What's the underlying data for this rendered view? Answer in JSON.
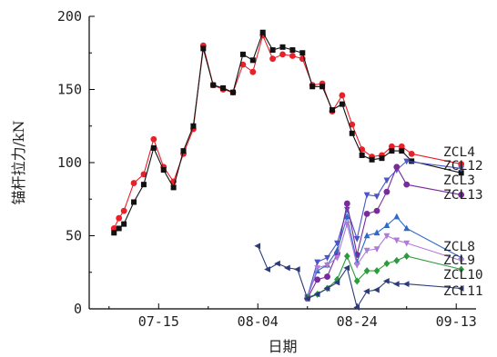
{
  "chart_data": {
    "type": "line",
    "xlabel": "日期",
    "ylabel": "锚杆拉力/kN",
    "x_unit": "days since 07-01",
    "x_ticks": [
      {
        "x": 14,
        "label": "07-15"
      },
      {
        "x": 34,
        "label": "08-04"
      },
      {
        "x": 54,
        "label": "08-24"
      },
      {
        "x": 74,
        "label": "09-13"
      }
    ],
    "xlim": [
      0,
      78
    ],
    "ylim": [
      0,
      200
    ],
    "y_ticks": [
      0,
      50,
      100,
      150,
      200
    ],
    "grid": false,
    "legend": "series labels at right end of lines",
    "series": [
      {
        "name": "ZCL4",
        "color": "#e8202a",
        "marker": "circle",
        "points": [
          [
            5,
            55
          ],
          [
            6,
            62
          ],
          [
            7,
            67
          ],
          [
            9,
            86
          ],
          [
            11,
            92
          ],
          [
            13,
            116
          ],
          [
            15,
            97
          ],
          [
            17,
            87
          ],
          [
            19,
            106
          ],
          [
            21,
            123
          ],
          [
            23,
            180
          ],
          [
            25,
            153
          ],
          [
            27,
            150
          ],
          [
            29,
            148
          ],
          [
            31,
            167
          ],
          [
            33,
            162
          ],
          [
            35,
            187
          ],
          [
            37,
            171
          ],
          [
            39,
            174
          ],
          [
            41,
            173
          ],
          [
            43,
            171
          ],
          [
            45,
            153
          ],
          [
            47,
            154
          ],
          [
            49,
            135
          ],
          [
            51,
            146
          ],
          [
            53,
            126
          ],
          [
            55,
            109
          ],
          [
            57,
            104
          ],
          [
            59,
            105
          ],
          [
            61,
            111
          ],
          [
            63,
            111
          ],
          [
            65,
            106
          ],
          [
            75,
            99
          ]
        ]
      },
      {
        "name": "ZCL12",
        "color": "#111111",
        "marker": "square",
        "points": [
          [
            5,
            52
          ],
          [
            6,
            55
          ],
          [
            7,
            58
          ],
          [
            9,
            73
          ],
          [
            11,
            85
          ],
          [
            13,
            110
          ],
          [
            15,
            95
          ],
          [
            17,
            83
          ],
          [
            19,
            108
          ],
          [
            21,
            125
          ],
          [
            23,
            178
          ],
          [
            25,
            153
          ],
          [
            27,
            151
          ],
          [
            29,
            148
          ],
          [
            31,
            174
          ],
          [
            33,
            170
          ],
          [
            35,
            189
          ],
          [
            37,
            177
          ],
          [
            39,
            179
          ],
          [
            41,
            177
          ],
          [
            43,
            175
          ],
          [
            45,
            152
          ],
          [
            47,
            152
          ],
          [
            49,
            136
          ],
          [
            51,
            140
          ],
          [
            53,
            120
          ],
          [
            55,
            105
          ],
          [
            57,
            102
          ],
          [
            59,
            103
          ],
          [
            61,
            108
          ],
          [
            63,
            108
          ],
          [
            65,
            101
          ],
          [
            75,
            93
          ]
        ]
      },
      {
        "name": "ZCL3",
        "color": "#4a56c8",
        "marker": "triangle-down",
        "points": [
          [
            44,
            8
          ],
          [
            46,
            32
          ],
          [
            48,
            35
          ],
          [
            50,
            45
          ],
          [
            52,
            68
          ],
          [
            54,
            48
          ],
          [
            56,
            78
          ],
          [
            58,
            77
          ],
          [
            60,
            88
          ],
          [
            62,
            95
          ],
          [
            64,
            101
          ],
          [
            75,
            96
          ]
        ]
      },
      {
        "name": "ZCL13",
        "color": "#7a2a9a",
        "marker": "circle",
        "points": [
          [
            44,
            7
          ],
          [
            46,
            20
          ],
          [
            48,
            22
          ],
          [
            50,
            38
          ],
          [
            52,
            72
          ],
          [
            54,
            37
          ],
          [
            56,
            65
          ],
          [
            58,
            67
          ],
          [
            60,
            80
          ],
          [
            62,
            97
          ],
          [
            64,
            85
          ],
          [
            75,
            78
          ]
        ]
      },
      {
        "name": "ZCL8",
        "color": "#2f6ac8",
        "marker": "triangle-up",
        "points": [
          [
            44,
            8
          ],
          [
            46,
            26
          ],
          [
            48,
            30
          ],
          [
            50,
            40
          ],
          [
            52,
            63
          ],
          [
            54,
            32
          ],
          [
            56,
            50
          ],
          [
            58,
            52
          ],
          [
            60,
            57
          ],
          [
            62,
            63
          ],
          [
            64,
            55
          ],
          [
            75,
            35
          ]
        ]
      },
      {
        "name": "ZCL9",
        "color": "#b07ad8",
        "marker": "triangle-down",
        "points": [
          [
            44,
            7
          ],
          [
            46,
            28
          ],
          [
            48,
            30
          ],
          [
            50,
            35
          ],
          [
            52,
            58
          ],
          [
            54,
            30
          ],
          [
            56,
            40
          ],
          [
            58,
            41
          ],
          [
            60,
            50
          ],
          [
            62,
            47
          ],
          [
            64,
            45
          ],
          [
            75,
            33
          ]
        ]
      },
      {
        "name": "ZCL10",
        "color": "#2e9a3e",
        "marker": "diamond",
        "points": [
          [
            44,
            8
          ],
          [
            46,
            10
          ],
          [
            48,
            14
          ],
          [
            50,
            20
          ],
          [
            52,
            36
          ],
          [
            54,
            19
          ],
          [
            56,
            26
          ],
          [
            58,
            26
          ],
          [
            60,
            31
          ],
          [
            62,
            33
          ],
          [
            64,
            36
          ],
          [
            75,
            27
          ]
        ]
      },
      {
        "name": "ZCL11",
        "color": "#2a3a7a",
        "marker": "triangle-left",
        "points": [
          [
            34,
            43
          ],
          [
            36,
            27
          ],
          [
            38,
            31
          ],
          [
            40,
            28
          ],
          [
            42,
            27
          ],
          [
            44,
            7
          ],
          [
            46,
            10
          ],
          [
            48,
            14
          ],
          [
            50,
            18
          ],
          [
            52,
            28
          ],
          [
            54,
            1
          ],
          [
            56,
            12
          ],
          [
            58,
            13
          ],
          [
            60,
            19
          ],
          [
            62,
            17
          ],
          [
            64,
            17
          ],
          [
            75,
            14
          ]
        ]
      }
    ]
  }
}
